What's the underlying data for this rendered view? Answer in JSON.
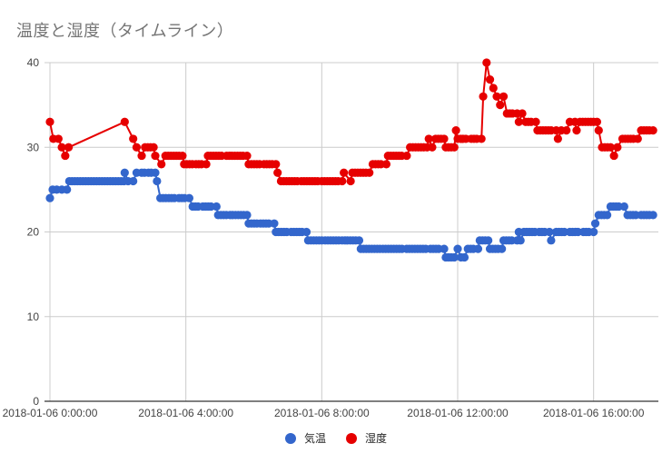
{
  "title": "温度と湿度（タイムライン）",
  "colors": {
    "temperature": "#3366cc",
    "humidity": "#e60000",
    "grid": "#cccccc",
    "axis": "#333333"
  },
  "legend": [
    {
      "label": "気温",
      "color": "#3366cc"
    },
    {
      "label": "湿度",
      "color": "#e60000"
    }
  ],
  "chart_data": {
    "type": "line",
    "title": "温度と湿度（タイムライン）",
    "xlabel": "",
    "ylabel": "",
    "ylim": [
      0,
      40
    ],
    "yticks": [
      0,
      10,
      20,
      30,
      40
    ],
    "xticks": [
      "2018-01-06 0:00:00",
      "2018-01-06 4:00:00",
      "2018-01-06 8:00:00",
      "2018-01-06 12:00:00",
      "2018-01-06 16:00:00"
    ],
    "xtick_hours": [
      0,
      4,
      8,
      12,
      16
    ],
    "xlim_hours": [
      0,
      17.9
    ],
    "grid": true,
    "legend_position": "bottom",
    "x_unit": "hours since 2018-01-06 0:00:00",
    "series": [
      {
        "name": "気温",
        "color": "#3366cc",
        "points": [
          [
            0.0,
            24
          ],
          [
            0.08,
            25
          ],
          [
            0.2,
            25
          ],
          [
            0.35,
            25
          ],
          [
            0.5,
            25
          ],
          [
            0.57,
            26
          ],
          [
            2.18,
            26
          ],
          [
            2.2,
            27
          ],
          [
            2.3,
            26
          ],
          [
            2.45,
            26
          ],
          [
            2.55,
            27
          ],
          [
            2.7,
            27
          ],
          [
            2.9,
            27
          ],
          [
            3.1,
            27
          ],
          [
            3.15,
            26
          ],
          [
            3.25,
            24
          ],
          [
            3.5,
            24
          ],
          [
            3.8,
            24
          ],
          [
            4.1,
            24
          ],
          [
            4.2,
            23
          ],
          [
            4.5,
            23
          ],
          [
            4.9,
            23
          ],
          [
            4.95,
            22
          ],
          [
            5.3,
            22
          ],
          [
            5.8,
            22
          ],
          [
            5.85,
            21
          ],
          [
            6.2,
            21
          ],
          [
            6.6,
            21
          ],
          [
            6.65,
            20
          ],
          [
            7.1,
            20
          ],
          [
            7.55,
            20
          ],
          [
            7.6,
            19
          ],
          [
            8.1,
            19
          ],
          [
            8.6,
            19
          ],
          [
            9.1,
            19
          ],
          [
            9.15,
            18
          ],
          [
            9.8,
            18
          ],
          [
            10.5,
            18
          ],
          [
            11.2,
            18
          ],
          [
            11.6,
            18
          ],
          [
            11.65,
            17
          ],
          [
            11.9,
            17
          ],
          [
            12.0,
            18
          ],
          [
            12.1,
            17
          ],
          [
            12.2,
            17
          ],
          [
            12.3,
            18
          ],
          [
            12.6,
            18
          ],
          [
            12.65,
            19
          ],
          [
            12.9,
            19
          ],
          [
            12.95,
            18
          ],
          [
            13.3,
            18
          ],
          [
            13.35,
            19
          ],
          [
            13.75,
            19
          ],
          [
            13.8,
            20
          ],
          [
            13.85,
            19
          ],
          [
            13.95,
            20
          ],
          [
            14.4,
            20
          ],
          [
            14.7,
            20
          ],
          [
            14.75,
            19
          ],
          [
            14.9,
            20
          ],
          [
            15.3,
            20
          ],
          [
            15.7,
            20
          ],
          [
            16.0,
            20
          ],
          [
            16.05,
            21
          ],
          [
            16.15,
            22
          ],
          [
            16.4,
            22
          ],
          [
            16.5,
            23
          ],
          [
            16.9,
            23
          ],
          [
            17.0,
            22
          ],
          [
            17.4,
            22
          ],
          [
            17.75,
            22
          ]
        ]
      },
      {
        "name": "湿度",
        "color": "#e60000",
        "points": [
          [
            0.0,
            33
          ],
          [
            0.1,
            31
          ],
          [
            0.25,
            31
          ],
          [
            0.35,
            30
          ],
          [
            0.45,
            29
          ],
          [
            0.55,
            30
          ],
          [
            2.2,
            33
          ],
          [
            2.45,
            31
          ],
          [
            2.55,
            30
          ],
          [
            2.7,
            29
          ],
          [
            2.8,
            30
          ],
          [
            3.05,
            30
          ],
          [
            3.1,
            29
          ],
          [
            3.28,
            28
          ],
          [
            3.4,
            29
          ],
          [
            3.9,
            29
          ],
          [
            3.95,
            28
          ],
          [
            4.3,
            28
          ],
          [
            4.6,
            28
          ],
          [
            4.65,
            29
          ],
          [
            5.2,
            29
          ],
          [
            5.8,
            29
          ],
          [
            5.85,
            28
          ],
          [
            6.3,
            28
          ],
          [
            6.65,
            28
          ],
          [
            6.7,
            27
          ],
          [
            6.8,
            26
          ],
          [
            7.4,
            26
          ],
          [
            8.0,
            26
          ],
          [
            8.6,
            26
          ],
          [
            8.65,
            27
          ],
          [
            8.85,
            26
          ],
          [
            8.9,
            27
          ],
          [
            9.4,
            27
          ],
          [
            9.5,
            28
          ],
          [
            9.9,
            28
          ],
          [
            9.95,
            29
          ],
          [
            10.5,
            29
          ],
          [
            10.6,
            30
          ],
          [
            11.1,
            30
          ],
          [
            11.15,
            31
          ],
          [
            11.25,
            30
          ],
          [
            11.35,
            31
          ],
          [
            11.6,
            31
          ],
          [
            11.65,
            30
          ],
          [
            11.9,
            30
          ],
          [
            11.95,
            32
          ],
          [
            12.0,
            31
          ],
          [
            12.4,
            31
          ],
          [
            12.7,
            31
          ],
          [
            12.75,
            36
          ],
          [
            12.85,
            40
          ],
          [
            12.95,
            38
          ],
          [
            13.05,
            37
          ],
          [
            13.15,
            36
          ],
          [
            13.25,
            35
          ],
          [
            13.35,
            36
          ],
          [
            13.45,
            34
          ],
          [
            13.75,
            34
          ],
          [
            13.8,
            33
          ],
          [
            13.9,
            34
          ],
          [
            14.0,
            33
          ],
          [
            14.3,
            33
          ],
          [
            14.35,
            32
          ],
          [
            14.9,
            32
          ],
          [
            14.95,
            31
          ],
          [
            15.05,
            32
          ],
          [
            15.2,
            32
          ],
          [
            15.3,
            33
          ],
          [
            15.45,
            33
          ],
          [
            15.5,
            32
          ],
          [
            15.6,
            33
          ],
          [
            16.1,
            33
          ],
          [
            16.15,
            32
          ],
          [
            16.25,
            30
          ],
          [
            16.5,
            30
          ],
          [
            16.6,
            29
          ],
          [
            16.7,
            30
          ],
          [
            16.85,
            31
          ],
          [
            17.3,
            31
          ],
          [
            17.4,
            32
          ],
          [
            17.75,
            32
          ]
        ]
      }
    ]
  }
}
